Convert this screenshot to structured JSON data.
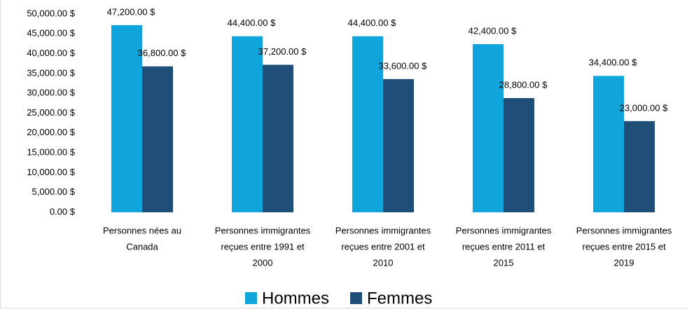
{
  "chart_data": {
    "type": "bar",
    "categories": [
      [
        "Personnes nées au",
        "Canada"
      ],
      [
        "Personnes immigrantes",
        "reçues entre 1991 et",
        "2000"
      ],
      [
        "Personnes immigrantes",
        "reçues entre 2001 et",
        "2010"
      ],
      [
        "Personnes immigrantes",
        "reçues entre 2011 et",
        "2015"
      ],
      [
        "Personnes immigrantes",
        "reçues entre 2015 et",
        "2019"
      ]
    ],
    "series": [
      {
        "name": "Hommes",
        "color": "#0fa5dc",
        "values": [
          47200,
          44400,
          44400,
          42400,
          34400
        ],
        "value_labels": [
          "47,200.00  $",
          "44,400.00  $",
          "44,400.00  $",
          "42,400.00  $",
          "34,400.00  $"
        ]
      },
      {
        "name": "Femmes",
        "color": "#1f4e79",
        "values": [
          36800,
          37200,
          33600,
          28800,
          23000
        ],
        "value_labels": [
          "36,800.00  $",
          "37,200.00  $",
          "33,600.00  $",
          "28,800.00  $",
          "23,000.00  $"
        ]
      }
    ],
    "ylim": [
      0,
      50000
    ],
    "yticks": [
      {
        "value": 0,
        "label": "0.00 $"
      },
      {
        "value": 5000,
        "label": "5,000.00 $"
      },
      {
        "value": 10000,
        "label": "10,000.00 $"
      },
      {
        "value": 15000,
        "label": "15,000.00 $"
      },
      {
        "value": 20000,
        "label": "20,000.00 $"
      },
      {
        "value": 25000,
        "label": "25,000.00 $"
      },
      {
        "value": 30000,
        "label": "30,000.00 $"
      },
      {
        "value": 35000,
        "label": "35,000.00 $"
      },
      {
        "value": 40000,
        "label": "40,000.00 $"
      },
      {
        "value": 45000,
        "label": "45,000.00 $"
      },
      {
        "value": 50000,
        "label": "50,000.00 $"
      }
    ],
    "grid": false,
    "legend": "bottom"
  }
}
